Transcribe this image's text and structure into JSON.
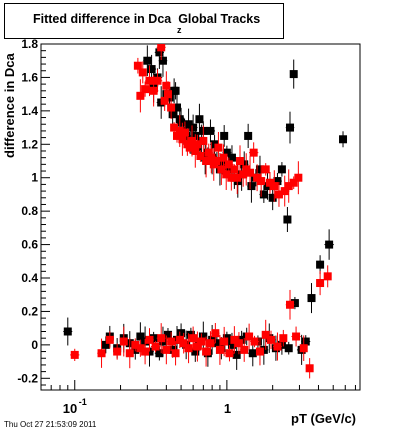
{
  "chart_data": {
    "type": "scatter",
    "title": "Fitted difference in Dca",
    "title_subscript": "z",
    "title_suffix": "Global Tracks",
    "xlabel": "pT (GeV/c)",
    "ylabel": "difference in Dca",
    "x_scale": "log",
    "xlim": [
      0.06,
      7.5
    ],
    "ylim": [
      -0.27,
      1.8
    ],
    "yticks": [
      -0.2,
      0,
      0.2,
      0.4,
      0.6,
      0.8,
      1,
      1.2,
      1.4,
      1.6,
      1.8
    ],
    "ytick_labels": [
      "-0.2",
      "0",
      "0.2",
      "0.4",
      "0.6",
      "0.8",
      "1",
      "1.2",
      "1.4",
      "1.6",
      "1.8"
    ],
    "xtick_labels": [
      {
        "x": 0.1,
        "base": "10",
        "exp": "-1"
      },
      {
        "x": 1,
        "base": "1",
        "exp": ""
      }
    ],
    "grid": false,
    "series": [
      {
        "color": "#000000",
        "marker": "square",
        "points": [
          [
            0.3,
            1.7
          ],
          [
            0.32,
            1.65
          ],
          [
            0.33,
            1.55
          ],
          [
            0.35,
            1.6
          ],
          [
            0.36,
            1.75
          ],
          [
            0.37,
            1.45
          ],
          [
            0.38,
            1.7
          ],
          [
            0.4,
            1.5
          ],
          [
            0.42,
            1.48
          ],
          [
            0.44,
            1.38
          ],
          [
            0.45,
            1.52
          ],
          [
            0.46,
            1.52
          ],
          [
            0.47,
            1.42
          ],
          [
            0.49,
            1.35
          ],
          [
            0.5,
            1.33
          ],
          [
            0.52,
            1.28
          ],
          [
            0.54,
            1.25
          ],
          [
            0.56,
            1.32
          ],
          [
            0.58,
            1.22
          ],
          [
            0.6,
            1.3
          ],
          [
            0.62,
            1.25
          ],
          [
            0.64,
            1.18
          ],
          [
            0.66,
            1.35
          ],
          [
            0.68,
            1.22
          ],
          [
            0.7,
            1.28
          ],
          [
            0.72,
            1.12
          ],
          [
            0.75,
            1.15
          ],
          [
            0.78,
            1.28
          ],
          [
            0.8,
            1.12
          ],
          [
            0.83,
            1.2
          ],
          [
            0.86,
            1.1
          ],
          [
            0.9,
            1.05
          ],
          [
            0.93,
            1.08
          ],
          [
            0.96,
            1.25
          ],
          [
            1.0,
            1.15
          ],
          [
            1.04,
            1.05
          ],
          [
            1.08,
            1.12
          ],
          [
            1.12,
            1.0
          ],
          [
            1.18,
            0.98
          ],
          [
            1.25,
            1.02
          ],
          [
            1.3,
            1.08
          ],
          [
            1.38,
            1.25
          ],
          [
            1.45,
            0.95
          ],
          [
            1.55,
            1.0
          ],
          [
            1.65,
            1.05
          ],
          [
            1.75,
            0.9
          ],
          [
            1.85,
            0.95
          ],
          [
            2.0,
            0.88
          ],
          [
            2.15,
            0.98
          ],
          [
            2.3,
            1.05
          ],
          [
            2.5,
            0.75
          ],
          [
            2.6,
            1.3
          ],
          [
            2.75,
            1.62
          ],
          [
            0.09,
            0.08
          ],
          [
            0.16,
            0.0
          ],
          [
            0.17,
            0.05
          ],
          [
            0.19,
            -0.02
          ],
          [
            0.21,
            0.04
          ],
          [
            0.23,
            0.01
          ],
          [
            0.25,
            -0.03
          ],
          [
            0.27,
            0.05
          ],
          [
            0.29,
            0.02
          ],
          [
            0.31,
            -0.04
          ],
          [
            0.33,
            0.04
          ],
          [
            0.36,
            -0.05
          ],
          [
            0.38,
            0.02
          ],
          [
            0.41,
            0.06
          ],
          [
            0.44,
            -0.03
          ],
          [
            0.47,
            0.03
          ],
          [
            0.5,
            0.07
          ],
          [
            0.54,
            0.0
          ],
          [
            0.58,
            0.06
          ],
          [
            0.62,
            -0.04
          ],
          [
            0.66,
            0.02
          ],
          [
            0.7,
            0.05
          ],
          [
            0.75,
            -0.05
          ],
          [
            0.8,
            0.03
          ],
          [
            0.86,
            0.01
          ],
          [
            0.92,
            -0.02
          ],
          [
            1.0,
            0.04
          ],
          [
            1.08,
            0.0
          ],
          [
            1.16,
            -0.06
          ],
          [
            1.25,
            0.03
          ],
          [
            1.35,
            0.05
          ],
          [
            1.48,
            -0.05
          ],
          [
            1.6,
            0.02
          ],
          [
            1.75,
            -0.03
          ],
          [
            1.9,
            0.04
          ],
          [
            2.1,
            -0.02
          ],
          [
            2.3,
            0.0
          ],
          [
            2.55,
            -0.02
          ],
          [
            2.8,
            0.25
          ],
          [
            3.1,
            -0.03
          ],
          [
            3.3,
            0.02
          ],
          [
            3.6,
            0.28
          ],
          [
            4.1,
            0.48
          ],
          [
            4.7,
            0.6
          ],
          [
            5.8,
            1.23
          ]
        ]
      },
      {
        "color": "#ff0000",
        "marker": "square",
        "points": [
          [
            0.26,
            1.67
          ],
          [
            0.27,
            1.49
          ],
          [
            0.28,
            1.63
          ],
          [
            0.29,
            1.53
          ],
          [
            0.31,
            1.58
          ],
          [
            0.33,
            1.52
          ],
          [
            0.35,
            1.58
          ],
          [
            0.37,
            1.78
          ],
          [
            0.39,
            1.46
          ],
          [
            0.4,
            1.55
          ],
          [
            0.41,
            1.5
          ],
          [
            0.43,
            1.42
          ],
          [
            0.45,
            1.3
          ],
          [
            0.47,
            1.25
          ],
          [
            0.49,
            1.28
          ],
          [
            0.51,
            1.23
          ],
          [
            0.53,
            1.27
          ],
          [
            0.55,
            1.2
          ],
          [
            0.57,
            1.18
          ],
          [
            0.59,
            1.22
          ],
          [
            0.62,
            1.16
          ],
          [
            0.64,
            1.2
          ],
          [
            0.67,
            1.13
          ],
          [
            0.7,
            1.22
          ],
          [
            0.73,
            1.1
          ],
          [
            0.76,
            1.15
          ],
          [
            0.79,
            1.12
          ],
          [
            0.82,
            1.08
          ],
          [
            0.85,
            1.1
          ],
          [
            0.88,
            1.18
          ],
          [
            0.92,
            1.05
          ],
          [
            0.95,
            1.12
          ],
          [
            0.99,
            1.02
          ],
          [
            1.03,
            1.08
          ],
          [
            1.07,
            1.0
          ],
          [
            1.12,
            1.05
          ],
          [
            1.17,
            1.0
          ],
          [
            1.22,
            1.1
          ],
          [
            1.28,
            1.02
          ],
          [
            1.34,
            1.05
          ],
          [
            1.42,
            1.03
          ],
          [
            1.5,
            1.15
          ],
          [
            1.58,
            1.0
          ],
          [
            1.68,
            0.98
          ],
          [
            1.8,
            1.05
          ],
          [
            1.92,
            0.97
          ],
          [
            2.05,
            0.95
          ],
          [
            2.2,
            0.9
          ],
          [
            2.4,
            0.92
          ],
          [
            2.55,
            0.95
          ],
          [
            2.75,
            0.97
          ],
          [
            2.95,
            1.0
          ],
          [
            0.1,
            -0.06
          ],
          [
            0.15,
            -0.05
          ],
          [
            0.17,
            0.03
          ],
          [
            0.19,
            -0.04
          ],
          [
            0.21,
            0.02
          ],
          [
            0.23,
            -0.05
          ],
          [
            0.25,
            0.0
          ],
          [
            0.27,
            -0.02
          ],
          [
            0.29,
            -0.04
          ],
          [
            0.31,
            0.03
          ],
          [
            0.34,
            -0.01
          ],
          [
            0.37,
            0.04
          ],
          [
            0.4,
            -0.03
          ],
          [
            0.43,
            0.02
          ],
          [
            0.46,
            -0.05
          ],
          [
            0.49,
            0.03
          ],
          [
            0.52,
            0.01
          ],
          [
            0.56,
            -0.02
          ],
          [
            0.6,
            0.04
          ],
          [
            0.64,
            -0.01
          ],
          [
            0.68,
            0.02
          ],
          [
            0.73,
            -0.04
          ],
          [
            0.78,
            0.01
          ],
          [
            0.84,
            0.07
          ],
          [
            0.9,
            -0.03
          ],
          [
            0.96,
            0.02
          ],
          [
            1.04,
            -0.05
          ],
          [
            1.12,
            0.03
          ],
          [
            1.2,
            0.01
          ],
          [
            1.3,
            -0.03
          ],
          [
            1.4,
            0.05
          ],
          [
            1.52,
            0.02
          ],
          [
            1.65,
            -0.04
          ],
          [
            1.8,
            0.06
          ],
          [
            1.95,
            0.03
          ],
          [
            2.15,
            -0.01
          ],
          [
            2.35,
            0.04
          ],
          [
            2.6,
            0.24
          ],
          [
            2.85,
            0.05
          ],
          [
            3.2,
            -0.02
          ],
          [
            3.5,
            -0.14
          ],
          [
            4.1,
            0.37
          ],
          [
            4.6,
            0.41
          ]
        ]
      }
    ]
  },
  "timestamp": "Thu Oct 27 21:53:09 2011"
}
